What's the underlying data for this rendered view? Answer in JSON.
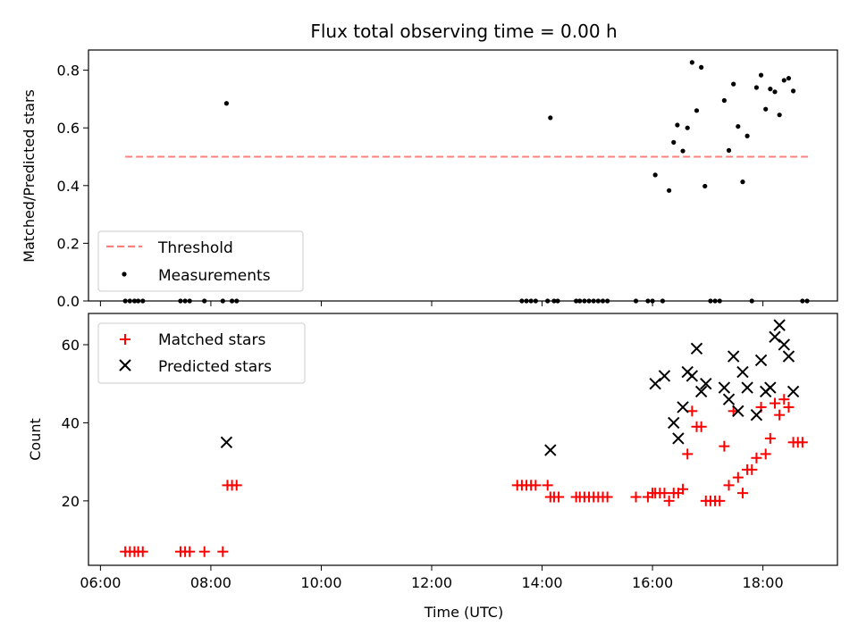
{
  "chart_data": [
    {
      "type": "scatter",
      "title": "Flux total observing time = 0.00 h",
      "xlabel": "",
      "ylabel": "Matched/Predicted stars",
      "xlim": [
        "05:47",
        "19:21"
      ],
      "ylim": [
        0,
        0.87
      ],
      "yticks": [
        "0.0",
        "0.2",
        "0.4",
        "0.6",
        "0.8"
      ],
      "ytick_values": [
        0,
        0.2,
        0.4,
        0.6,
        0.8
      ],
      "grid": false,
      "legend": "lower-left",
      "threshold": {
        "name": "Threshold",
        "color": "#ff7f7f",
        "y": 0.5,
        "x_start": "06:27",
        "x_end": "18:49"
      },
      "series": [
        {
          "name": "Measurements",
          "color": "#000000",
          "marker": "dot",
          "points": [
            [
              "06:27",
              0
            ],
            [
              "06:32",
              0
            ],
            [
              "06:37",
              0
            ],
            [
              "06:41",
              0
            ],
            [
              "06:46",
              0
            ],
            [
              "07:27",
              0
            ],
            [
              "07:32",
              0
            ],
            [
              "07:37",
              0
            ],
            [
              "07:53",
              0
            ],
            [
              "08:13",
              0
            ],
            [
              "08:17",
              0.685
            ],
            [
              "08:23",
              0
            ],
            [
              "08:28",
              0
            ],
            [
              "13:38",
              0
            ],
            [
              "13:43",
              0
            ],
            [
              "13:48",
              0
            ],
            [
              "13:53",
              0
            ],
            [
              "14:06",
              0
            ],
            [
              "14:09",
              0.635
            ],
            [
              "14:13",
              0
            ],
            [
              "14:17",
              0
            ],
            [
              "14:37",
              0
            ],
            [
              "14:41",
              0
            ],
            [
              "14:46",
              0
            ],
            [
              "14:51",
              0
            ],
            [
              "14:56",
              0
            ],
            [
              "15:01",
              0
            ],
            [
              "15:06",
              0
            ],
            [
              "15:11",
              0
            ],
            [
              "15:42",
              0
            ],
            [
              "15:55",
              0
            ],
            [
              "16:00",
              0
            ],
            [
              "16:03",
              0.437
            ],
            [
              "16:11",
              0
            ],
            [
              "16:18",
              0.383
            ],
            [
              "16:23",
              0.55
            ],
            [
              "16:27",
              0.61
            ],
            [
              "16:33",
              0.52
            ],
            [
              "16:38",
              0.6
            ],
            [
              "16:43",
              0.827
            ],
            [
              "16:48",
              0.66
            ],
            [
              "16:53",
              0.81
            ],
            [
              "16:57",
              0.398
            ],
            [
              "17:03",
              0
            ],
            [
              "17:08",
              0
            ],
            [
              "17:13",
              0
            ],
            [
              "17:18",
              0.695
            ],
            [
              "17:23",
              0.522
            ],
            [
              "17:28",
              0.752
            ],
            [
              "17:33",
              0.605
            ],
            [
              "17:38",
              0.413
            ],
            [
              "17:43",
              0.572
            ],
            [
              "17:48",
              0
            ],
            [
              "17:53",
              0.74
            ],
            [
              "17:58",
              0.783
            ],
            [
              "18:03",
              0.665
            ],
            [
              "18:08",
              0.735
            ],
            [
              "18:13",
              0.725
            ],
            [
              "18:18",
              0.645
            ],
            [
              "18:23",
              0.765
            ],
            [
              "18:28",
              0.772
            ],
            [
              "18:33",
              0.728
            ],
            [
              "18:43",
              0
            ],
            [
              "18:48",
              0
            ]
          ]
        }
      ]
    },
    {
      "type": "scatter",
      "title": "",
      "xlabel": "Time (UTC)",
      "ylabel": "Count",
      "xlim": [
        "05:47",
        "19:21"
      ],
      "ylim": [
        3.5,
        68
      ],
      "xticks": [
        "06:00",
        "08:00",
        "10:00",
        "12:00",
        "14:00",
        "16:00",
        "18:00"
      ],
      "yticks": [
        "20",
        "40",
        "60"
      ],
      "ytick_values": [
        20,
        40,
        60
      ],
      "grid": false,
      "legend": "upper-left",
      "series": [
        {
          "name": "Matched stars",
          "color": "#ff0000",
          "marker": "plus",
          "points": [
            [
              "06:27",
              7
            ],
            [
              "06:32",
              7
            ],
            [
              "06:37",
              7
            ],
            [
              "06:41",
              7
            ],
            [
              "06:46",
              7
            ],
            [
              "07:27",
              7
            ],
            [
              "07:32",
              7
            ],
            [
              "07:37",
              7
            ],
            [
              "07:53",
              7
            ],
            [
              "08:13",
              7
            ],
            [
              "08:18",
              24
            ],
            [
              "08:23",
              24
            ],
            [
              "08:28",
              24
            ],
            [
              "13:33",
              24
            ],
            [
              "13:38",
              24
            ],
            [
              "13:43",
              24
            ],
            [
              "13:48",
              24
            ],
            [
              "13:53",
              24
            ],
            [
              "14:06",
              24
            ],
            [
              "14:09",
              21
            ],
            [
              "14:13",
              21
            ],
            [
              "14:18",
              21
            ],
            [
              "14:37",
              21
            ],
            [
              "14:41",
              21
            ],
            [
              "14:46",
              21
            ],
            [
              "14:51",
              21
            ],
            [
              "14:56",
              21
            ],
            [
              "15:01",
              21
            ],
            [
              "15:06",
              21
            ],
            [
              "15:11",
              21
            ],
            [
              "15:42",
              21
            ],
            [
              "15:55",
              21
            ],
            [
              "16:00",
              22
            ],
            [
              "16:03",
              22
            ],
            [
              "16:08",
              22
            ],
            [
              "16:13",
              22
            ],
            [
              "16:18",
              20
            ],
            [
              "16:23",
              22
            ],
            [
              "16:28",
              22
            ],
            [
              "16:33",
              23
            ],
            [
              "16:38",
              32
            ],
            [
              "16:43",
              43
            ],
            [
              "16:48",
              39
            ],
            [
              "16:53",
              39
            ],
            [
              "16:58",
              20
            ],
            [
              "17:03",
              20
            ],
            [
              "17:08",
              20
            ],
            [
              "17:13",
              20
            ],
            [
              "17:18",
              34
            ],
            [
              "17:23",
              24
            ],
            [
              "17:28",
              43
            ],
            [
              "17:33",
              26
            ],
            [
              "17:38",
              22
            ],
            [
              "17:43",
              28
            ],
            [
              "17:48",
              28
            ],
            [
              "17:53",
              31
            ],
            [
              "17:58",
              44
            ],
            [
              "18:03",
              32
            ],
            [
              "18:08",
              36
            ],
            [
              "18:13",
              45
            ],
            [
              "18:18",
              42
            ],
            [
              "18:23",
              46
            ],
            [
              "18:28",
              44
            ],
            [
              "18:33",
              35
            ],
            [
              "18:38",
              35
            ],
            [
              "18:43",
              35
            ]
          ]
        },
        {
          "name": "Predicted stars",
          "color": "#000000",
          "marker": "x",
          "points": [
            [
              "08:17",
              35
            ],
            [
              "14:09",
              33
            ],
            [
              "16:03",
              50
            ],
            [
              "16:13",
              52
            ],
            [
              "16:23",
              40
            ],
            [
              "16:28",
              36
            ],
            [
              "16:33",
              44
            ],
            [
              "16:38",
              53
            ],
            [
              "16:43",
              52
            ],
            [
              "16:48",
              59
            ],
            [
              "16:53",
              48
            ],
            [
              "16:58",
              50
            ],
            [
              "17:18",
              49
            ],
            [
              "17:23",
              46
            ],
            [
              "17:28",
              57
            ],
            [
              "17:33",
              43
            ],
            [
              "17:38",
              53
            ],
            [
              "17:43",
              49
            ],
            [
              "17:53",
              42
            ],
            [
              "17:58",
              56
            ],
            [
              "18:03",
              48
            ],
            [
              "18:08",
              49
            ],
            [
              "18:13",
              62
            ],
            [
              "18:18",
              65
            ],
            [
              "18:23",
              60
            ],
            [
              "18:28",
              57
            ],
            [
              "18:33",
              48
            ]
          ]
        }
      ]
    }
  ]
}
